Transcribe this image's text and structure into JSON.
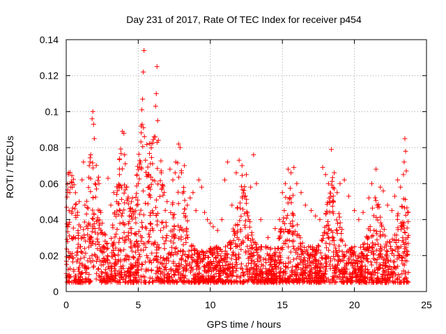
{
  "chart_data": {
    "type": "scatter",
    "title": "Day 231 of 2017, Rate Of TEC Index for receiver p454",
    "xlabel": "GPS time / hours",
    "ylabel": "ROTI / TECUs",
    "xlim": [
      0,
      25
    ],
    "ylim": [
      0,
      0.14
    ],
    "x_ticks": [
      "0",
      "5",
      "10",
      "15",
      "20",
      "25"
    ],
    "y_ticks": [
      "0",
      "0.02",
      "0.04",
      "0.06",
      "0.08",
      "0.1",
      "0.12",
      "0.14"
    ],
    "grid": true,
    "marker": "plus",
    "color": "#ff0000",
    "series": [
      {
        "name": "ROTI",
        "points": [
          [
            0.0,
            0.01
          ],
          [
            0.1,
            0.036
          ],
          [
            0.2,
            0.045
          ],
          [
            0.25,
            0.055
          ],
          [
            0.3,
            0.058
          ],
          [
            0.35,
            0.061
          ],
          [
            0.5,
            0.03
          ],
          [
            0.6,
            0.046
          ],
          [
            0.8,
            0.022
          ],
          [
            0.9,
            0.05
          ],
          [
            1.0,
            0.025
          ],
          [
            1.1,
            0.062
          ],
          [
            1.2,
            0.072
          ],
          [
            1.3,
            0.048
          ],
          [
            1.5,
            0.035
          ],
          [
            1.6,
            0.07
          ],
          [
            1.7,
            0.076
          ],
          [
            1.8,
            0.096
          ],
          [
            1.85,
            0.1
          ],
          [
            1.9,
            0.093
          ],
          [
            1.95,
            0.085
          ],
          [
            2.0,
            0.06
          ],
          [
            2.1,
            0.057
          ],
          [
            2.2,
            0.032
          ],
          [
            2.4,
            0.044
          ],
          [
            2.5,
            0.038
          ],
          [
            2.7,
            0.028
          ],
          [
            2.9,
            0.063
          ],
          [
            3.1,
            0.048
          ],
          [
            3.3,
            0.055
          ],
          [
            3.5,
            0.05
          ],
          [
            3.7,
            0.065
          ],
          [
            3.9,
            0.089
          ],
          [
            4.0,
            0.088
          ],
          [
            4.05,
            0.076
          ],
          [
            4.1,
            0.071
          ],
          [
            4.2,
            0.058
          ],
          [
            4.4,
            0.046
          ],
          [
            4.6,
            0.052
          ],
          [
            4.8,
            0.041
          ],
          [
            5.0,
            0.06
          ],
          [
            5.1,
            0.069
          ],
          [
            5.2,
            0.092
          ],
          [
            5.25,
            0.101
          ],
          [
            5.3,
            0.107
          ],
          [
            5.35,
            0.122
          ],
          [
            5.4,
            0.134
          ],
          [
            5.5,
            0.073
          ],
          [
            5.6,
            0.064
          ],
          [
            5.8,
            0.058
          ],
          [
            6.0,
            0.062
          ],
          [
            6.1,
            0.086
          ],
          [
            6.2,
            0.103
          ],
          [
            6.25,
            0.11
          ],
          [
            6.3,
            0.125
          ],
          [
            6.35,
            0.095
          ],
          [
            6.4,
            0.084
          ],
          [
            6.6,
            0.066
          ],
          [
            6.8,
            0.055
          ],
          [
            7.0,
            0.05
          ],
          [
            7.2,
            0.068
          ],
          [
            7.4,
            0.062
          ],
          [
            7.6,
            0.072
          ],
          [
            7.8,
            0.082
          ],
          [
            7.9,
            0.08
          ],
          [
            8.0,
            0.066
          ],
          [
            8.2,
            0.07
          ],
          [
            8.4,
            0.048
          ],
          [
            8.6,
            0.052
          ],
          [
            8.8,
            0.055
          ],
          [
            9.0,
            0.045
          ],
          [
            9.2,
            0.062
          ],
          [
            9.4,
            0.058
          ],
          [
            9.6,
            0.044
          ],
          [
            9.8,
            0.04
          ],
          [
            10.0,
            0.038
          ],
          [
            10.2,
            0.036
          ],
          [
            10.5,
            0.034
          ],
          [
            10.8,
            0.04
          ],
          [
            11.0,
            0.062
          ],
          [
            11.2,
            0.072
          ],
          [
            11.5,
            0.048
          ],
          [
            11.8,
            0.066
          ],
          [
            12.0,
            0.073
          ],
          [
            12.2,
            0.07
          ],
          [
            12.5,
            0.065
          ],
          [
            12.8,
            0.058
          ],
          [
            13.0,
            0.076
          ],
          [
            13.2,
            0.06
          ],
          [
            13.5,
            0.04
          ],
          [
            14.0,
            0.03
          ],
          [
            14.5,
            0.035
          ],
          [
            14.8,
            0.04
          ],
          [
            15.0,
            0.055
          ],
          [
            15.2,
            0.06
          ],
          [
            15.4,
            0.068
          ],
          [
            15.6,
            0.066
          ],
          [
            15.8,
            0.069
          ],
          [
            16.0,
            0.06
          ],
          [
            16.3,
            0.055
          ],
          [
            16.6,
            0.048
          ],
          [
            17.0,
            0.045
          ],
          [
            17.3,
            0.042
          ],
          [
            17.6,
            0.04
          ],
          [
            17.8,
            0.069
          ],
          [
            18.0,
            0.065
          ],
          [
            18.2,
            0.06
          ],
          [
            18.4,
            0.079
          ],
          [
            18.6,
            0.066
          ],
          [
            18.8,
            0.055
          ],
          [
            19.0,
            0.06
          ],
          [
            19.3,
            0.062
          ],
          [
            19.6,
            0.053
          ],
          [
            20.0,
            0.045
          ],
          [
            20.3,
            0.04
          ],
          [
            20.6,
            0.044
          ],
          [
            21.0,
            0.052
          ],
          [
            21.2,
            0.06
          ],
          [
            21.5,
            0.068
          ],
          [
            21.8,
            0.058
          ],
          [
            22.0,
            0.056
          ],
          [
            22.3,
            0.048
          ],
          [
            22.6,
            0.045
          ],
          [
            22.8,
            0.053
          ],
          [
            23.0,
            0.062
          ],
          [
            23.2,
            0.058
          ],
          [
            23.4,
            0.065
          ],
          [
            23.45,
            0.072
          ],
          [
            23.5,
            0.085
          ],
          [
            23.55,
            0.078
          ],
          [
            23.6,
            0.067
          ],
          [
            23.7,
            0.03
          ]
        ]
      }
    ]
  }
}
